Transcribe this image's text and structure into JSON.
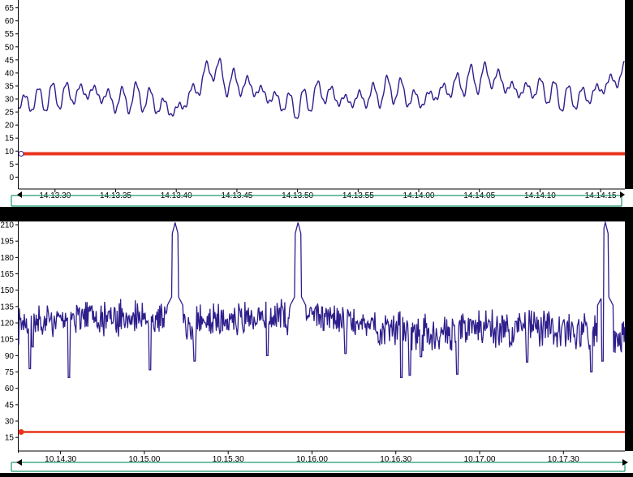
{
  "colors": {
    "series": "#2E1E8C",
    "threshold": "#E8341C",
    "plot_bg": "#FFFFFF",
    "frame_bg": "#000000",
    "scrollbar_border": "#1E9B6E",
    "axis_text": "#000000"
  },
  "scrollbar": {
    "left_arrow_icon": "triangle-left-icon",
    "right_arrow_icon": "triangle-right-icon"
  },
  "chart_data": [
    {
      "type": "line",
      "title": "",
      "xlabel": "",
      "ylabel": "",
      "ylim": [
        -3,
        68
      ],
      "xlim": [
        "14.13.27",
        "14.14.17"
      ],
      "yticks": [
        "65",
        "60",
        "55",
        "50",
        "45",
        "40",
        "35",
        "30",
        "25",
        "20",
        "15",
        "10",
        "5",
        "0"
      ],
      "xticks": [
        "14.13.30",
        "14.13.35",
        "14.13.40",
        "14.13.45",
        "14.13.50",
        "14.13.55",
        "14.14.00",
        "14.14.05",
        "14.14.10",
        "14.14.15"
      ],
      "grid": false,
      "series": [
        {
          "role": "signal",
          "envelope": [
            [
              "14.13.27",
              28
            ],
            [
              "14.13.30",
              31
            ],
            [
              "14.13.33",
              33
            ],
            [
              "14.13.35",
              29
            ],
            [
              "14.13.37",
              31
            ],
            [
              "14.13.39",
              27
            ],
            [
              "14.13.40",
              25
            ],
            [
              "14.13.42",
              36
            ],
            [
              "14.13.43",
              43
            ],
            [
              "14.13.44",
              37
            ],
            [
              "14.13.46",
              35
            ],
            [
              "14.13.48",
              30
            ],
            [
              "14.13.50",
              27
            ],
            [
              "14.13.52",
              33
            ],
            [
              "14.13.54",
              29
            ],
            [
              "14.13.56",
              31
            ],
            [
              "14.13.58",
              34
            ],
            [
              "14.14.00",
              29
            ],
            [
              "14.14.02",
              33
            ],
            [
              "14.14.04",
              37
            ],
            [
              "14.14.06",
              39
            ],
            [
              "14.14.08",
              33
            ],
            [
              "14.14.10",
              34
            ],
            [
              "14.14.12",
              30
            ],
            [
              "14.14.14",
              31
            ],
            [
              "14.14.16",
              37
            ],
            [
              "14.14.17",
              40
            ]
          ],
          "oscillation_amplitude": 5,
          "oscillation_period_s": 1.15,
          "range": [
            20,
            49
          ]
        },
        {
          "role": "threshold",
          "values": [
            [
              "14.13.27",
              9
            ],
            [
              "14.14.17",
              9
            ]
          ]
        }
      ]
    },
    {
      "type": "line",
      "title": "",
      "xlabel": "",
      "ylabel": "",
      "ylim": [
        4,
        213
      ],
      "xlim": [
        "10.14.15",
        "10.17.52"
      ],
      "yticks": [
        "210",
        "195",
        "180",
        "165",
        "150",
        "135",
        "120",
        "105",
        "90",
        "75",
        "60",
        "45",
        "30",
        "15"
      ],
      "xticks": [
        "10.14.30",
        "10.15.00",
        "10.15.30",
        "10.16.00",
        "10.16.30",
        "10.17.00",
        "10.17.30"
      ],
      "grid": false,
      "series": [
        {
          "role": "signal",
          "baseline": 118,
          "noise_amplitude": 18,
          "range": [
            70,
            213
          ],
          "spikes_up": [
            [
              "10.15.11",
              212
            ],
            [
              "10.15.55",
              212
            ],
            [
              "10.17.45",
              212
            ]
          ],
          "spikes_down": [
            [
              "10.14.19",
              78
            ],
            [
              "10.14.20",
              98
            ],
            [
              "10.14.33",
              70
            ],
            [
              "10.15.02",
              77
            ],
            [
              "10.15.18",
              85
            ],
            [
              "10.15.44",
              90
            ],
            [
              "10.16.12",
              92
            ],
            [
              "10.16.32",
              70
            ],
            [
              "10.16.35",
              72
            ],
            [
              "10.16.39",
              89
            ],
            [
              "10.16.52",
              73
            ],
            [
              "10.17.17",
              84
            ],
            [
              "10.17.40",
              75
            ],
            [
              "10.17.44",
              85
            ]
          ]
        },
        {
          "role": "threshold",
          "values": [
            [
              "10.14.15",
              20
            ],
            [
              "10.17.52",
              20
            ]
          ]
        }
      ]
    }
  ]
}
